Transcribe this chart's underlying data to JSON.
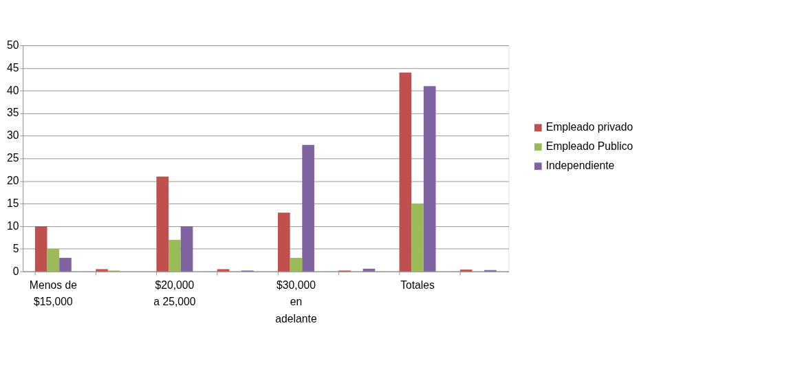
{
  "chart_data": {
    "type": "bar",
    "categories": [
      "Menos de $15,000",
      null,
      "$20,000 a 25,000",
      null,
      "$30,000 en adelante",
      null,
      "Totales",
      null
    ],
    "series": [
      {
        "name": "Empleado privado",
        "color": "#c0504d",
        "values": [
          10,
          0.5,
          21,
          0.5,
          13,
          0.2,
          44,
          0.4
        ]
      },
      {
        "name": "Empleado Publico",
        "color": "#9bbb59",
        "values": [
          5,
          0.2,
          7,
          null,
          3,
          null,
          15,
          null
        ]
      },
      {
        "name": "Independiente",
        "color": "#8064a2",
        "values": [
          3,
          null,
          10,
          0.2,
          28,
          0.6,
          41,
          0.3
        ]
      }
    ],
    "ylim": [
      0,
      50
    ],
    "yticks": [
      0,
      5,
      10,
      15,
      20,
      25,
      30,
      35,
      40,
      45,
      50
    ],
    "grid": "y",
    "legend": "right"
  }
}
